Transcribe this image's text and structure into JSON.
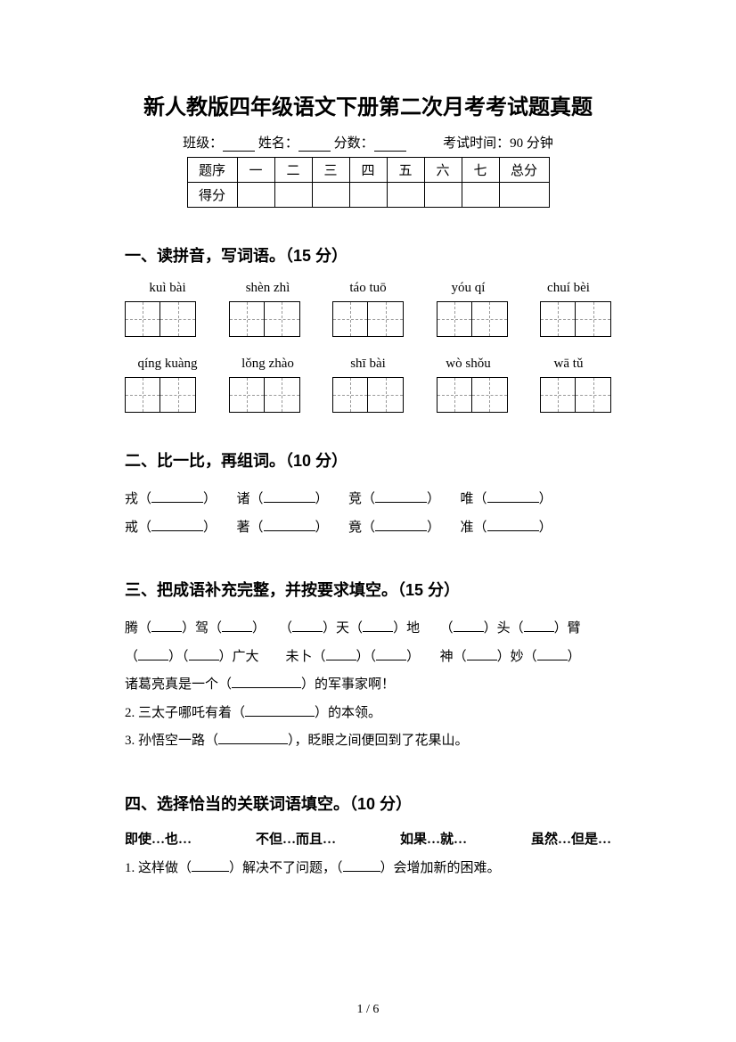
{
  "title": "新人教版四年级语文下册第二次月考考试题真题",
  "info": {
    "class_label": "班级：",
    "name_label": "姓名：",
    "score_label": "分数：",
    "time_label": "考试时间：90 分钟"
  },
  "score_table": {
    "headers": [
      "题序",
      "一",
      "二",
      "三",
      "四",
      "五",
      "六",
      "七",
      "总分"
    ],
    "row2_label": "得分"
  },
  "sec1": {
    "head": "一、读拼音，写词语。（15 分）",
    "row1": [
      "kuì bài",
      "shèn zhì",
      "táo tuō",
      "yóu qí",
      "chuí bèi"
    ],
    "row2": [
      "qíng kuàng",
      "lǒng zhào",
      "shī bài",
      "wò shǒu",
      "wā tǔ"
    ]
  },
  "sec2": {
    "head": "二、比一比，再组词。（10 分）",
    "pairs_row1": [
      "戎（",
      "）　　诸（",
      "）　　竞（",
      "）　　唯（",
      "）"
    ],
    "pairs_row2": [
      "戒（",
      "）　　著（",
      "）　　竟（",
      "）　　准（",
      "）"
    ]
  },
  "sec3": {
    "head": "三、把成语补充完整，并按要求填空。（15 分）",
    "line1_a": "腾（",
    "line1_b": "）驾（",
    "line1_c": "）　　（",
    "line1_d": "）天（",
    "line1_e": "）地　　（",
    "line1_f": "）头（",
    "line1_g": "）臂",
    "line2_a": "（",
    "line2_b": "）（",
    "line2_c": "）广大　　未卜（",
    "line2_d": "）（",
    "line2_e": "）　　神（",
    "line2_f": "）妙（",
    "line2_g": "）",
    "line3_a": "诸葛亮真是一个（",
    "line3_b": "）的军事家啊！",
    "line4_a": "2. 三太子哪吒有着（",
    "line4_b": "）的本领。",
    "line5_a": "3. 孙悟空一路（",
    "line5_b": "），眨眼之间便回到了花果山。"
  },
  "sec4": {
    "head": "四、选择恰当的关联词语填空。（10 分）",
    "words": [
      "即使…也…",
      "不但…而且…",
      "如果…就…",
      "虽然…但是…"
    ],
    "q1_a": "1. 这样做（",
    "q1_b": "）解决不了问题，（",
    "q1_c": "）会增加新的困难。"
  },
  "pager": "1 / 6"
}
